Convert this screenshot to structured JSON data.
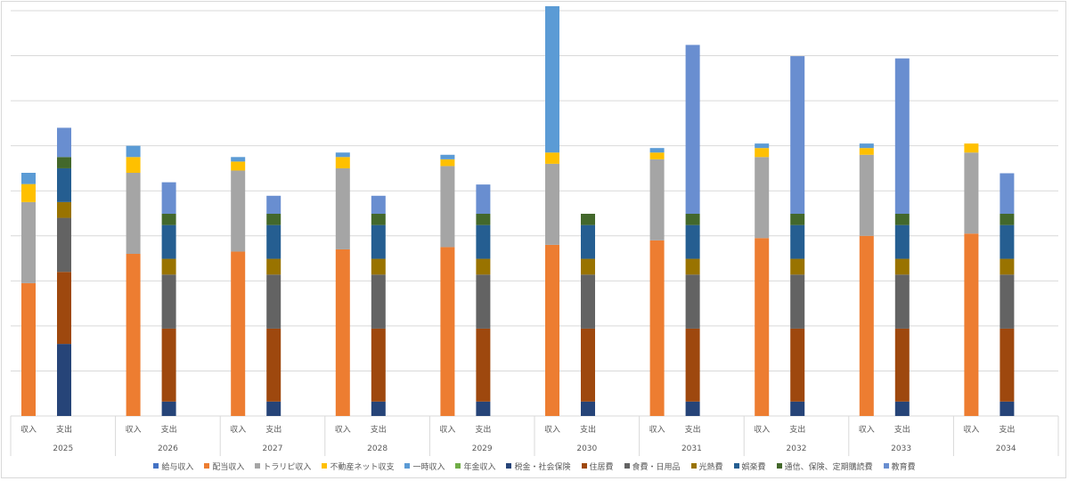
{
  "chart_data": {
    "type": "bar",
    "stacked": true,
    "title": "",
    "xlabel": "",
    "ylabel": "",
    "ylim": [
      0,
      9
    ],
    "grid": true,
    "legend_position": "bottom",
    "years": [
      "2025",
      "2026",
      "2027",
      "2028",
      "2029",
      "2030",
      "2031",
      "2032",
      "2033",
      "2034"
    ],
    "sub_categories": [
      "収入",
      "支出"
    ],
    "income_series": [
      {
        "name": "給与収入",
        "color": "#4472c4",
        "values": [
          0,
          0,
          0,
          0,
          0,
          0,
          0,
          0,
          0,
          0
        ]
      },
      {
        "name": "配当収入",
        "color": "#ed7d31",
        "values": [
          2.95,
          3.6,
          3.65,
          3.7,
          3.75,
          3.8,
          3.9,
          3.95,
          4.0,
          4.05
        ]
      },
      {
        "name": "トラリピ収入",
        "color": "#a5a5a5",
        "values": [
          1.8,
          1.8,
          1.8,
          1.8,
          1.8,
          1.8,
          1.8,
          1.8,
          1.8,
          1.8
        ]
      },
      {
        "name": "不動産ネット収支",
        "color": "#ffc000",
        "values": [
          0.4,
          0.35,
          0.2,
          0.25,
          0.15,
          0.25,
          0.15,
          0.2,
          0.15,
          0.2
        ]
      },
      {
        "name": "一時収入",
        "color": "#5b9bd5",
        "values": [
          0.25,
          0.25,
          0.1,
          0.1,
          0.1,
          3.25,
          0.1,
          0.1,
          0.1,
          0
        ]
      },
      {
        "name": "年金収入",
        "color": "#70ad47",
        "values": [
          0,
          0,
          0,
          0,
          0,
          0,
          0,
          0,
          0,
          0
        ]
      }
    ],
    "expense_series": [
      {
        "name": "税金・社会保険",
        "color": "#264478",
        "values": [
          1.6,
          0.32,
          0.32,
          0.32,
          0.32,
          0.32,
          0.32,
          0.32,
          0.32,
          0.32
        ]
      },
      {
        "name": "住居費",
        "color": "#9e480e",
        "values": [
          1.6,
          1.62,
          1.62,
          1.62,
          1.62,
          1.62,
          1.62,
          1.62,
          1.62,
          1.62
        ]
      },
      {
        "name": "食費・日用品",
        "color": "#636363",
        "values": [
          1.2,
          1.2,
          1.2,
          1.2,
          1.2,
          1.2,
          1.2,
          1.2,
          1.2,
          1.2
        ]
      },
      {
        "name": "光熱費",
        "color": "#997300",
        "values": [
          0.35,
          0.35,
          0.35,
          0.35,
          0.35,
          0.35,
          0.35,
          0.35,
          0.35,
          0.35
        ]
      },
      {
        "name": "娯楽費",
        "color": "#255e91",
        "values": [
          0.75,
          0.75,
          0.75,
          0.75,
          0.75,
          0.75,
          0.75,
          0.75,
          0.75,
          0.75
        ]
      },
      {
        "name": "通信、保険、定期購読費",
        "color": "#43682b",
        "values": [
          0.25,
          0.25,
          0.25,
          0.25,
          0.25,
          0.25,
          0.25,
          0.25,
          0.25,
          0.25
        ]
      },
      {
        "name": "教育費",
        "color": "#698ed0",
        "values": [
          0.65,
          0.7,
          0.4,
          0.4,
          0.65,
          0,
          3.75,
          3.5,
          3.45,
          0.9
        ]
      }
    ]
  }
}
